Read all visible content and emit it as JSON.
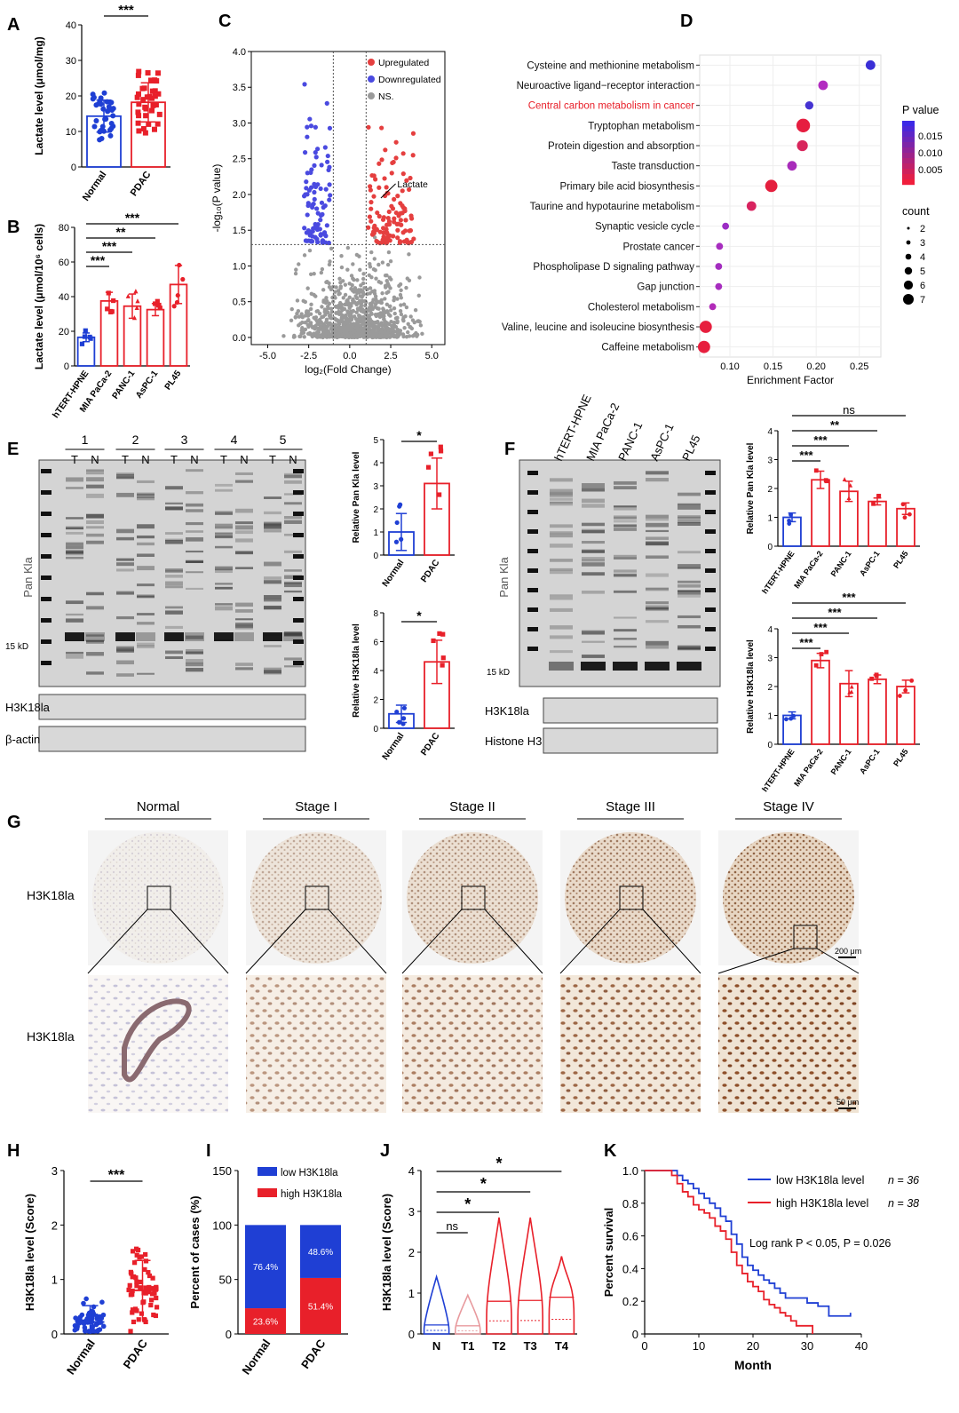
{
  "panel_letters": {
    "A": "A",
    "B": "B",
    "C": "C",
    "D": "D",
    "E": "E",
    "F": "F",
    "G": "G",
    "H": "H",
    "I": "I",
    "J": "J",
    "K": "K"
  },
  "colors": {
    "blue": "#1f3fd4",
    "red": "#e8202a",
    "grey": "#9a9a9a",
    "black": "#000000"
  },
  "chart_data": [
    {
      "panel": "A",
      "type": "bar",
      "ylabel": "Lactate level (μmol/mg)",
      "categories": [
        "Normal",
        "PDAC"
      ],
      "values": [
        14.3,
        18.2
      ],
      "errors": [
        4.5,
        5.5
      ],
      "ylim": [
        0,
        40
      ],
      "yticks": [
        "0",
        "10",
        "20",
        "30",
        "40"
      ],
      "significance": [
        {
          "from": "Normal",
          "to": "PDAC",
          "label": "***"
        }
      ]
    },
    {
      "panel": "B",
      "type": "bar",
      "ylabel": "Lactate level (μmol/10⁶ cells)",
      "categories": [
        "hTERT-HPNE",
        "MIA PaCa-2",
        "PANC-1",
        "AsPC-1",
        "PL45"
      ],
      "values": [
        16.5,
        37.5,
        34.5,
        32.5,
        47
      ],
      "errors": [
        2.5,
        5,
        7,
        3.5,
        11
      ],
      "ylim": [
        0,
        80
      ],
      "yticks": [
        "0",
        "20",
        "40",
        "60",
        "80"
      ],
      "significance": [
        {
          "from": "hTERT-HPNE",
          "to": "MIA PaCa-2",
          "label": "***"
        },
        {
          "from": "hTERT-HPNE",
          "to": "PANC-1",
          "label": "***"
        },
        {
          "from": "hTERT-HPNE",
          "to": "AsPC-1",
          "label": "**"
        },
        {
          "from": "hTERT-HPNE",
          "to": "PL45",
          "label": "***"
        }
      ]
    },
    {
      "panel": "C",
      "type": "scatter",
      "xlabel": "log₂(Fold Change)",
      "ylabel": "-log₁₀(P value)",
      "xlim": [
        -6,
        5.8
      ],
      "ylim": [
        -0.1,
        4.0
      ],
      "xticks": [
        "-5.0",
        "-2.5",
        "0.0",
        "2.5",
        "5.0"
      ],
      "yticks": [
        "0.0",
        "0.5",
        "1.0",
        "1.5",
        "2.0",
        "2.5",
        "3.0",
        "3.5",
        "4.0"
      ],
      "legend": [
        "Upregulated",
        "Downregulated",
        "NS."
      ],
      "annotation": "Lactate",
      "thresholds": {
        "fold": [
          -1,
          1
        ],
        "p": 1.3
      }
    },
    {
      "panel": "D",
      "type": "scatter",
      "xlabel": "Enrichment Factor",
      "xticks": [
        "0.10",
        "0.15",
        "0.20",
        "0.25"
      ],
      "legend_pvalue_title": "P value",
      "legend_pvalue_ticks": [
        "0.015",
        "0.010",
        "0.005"
      ],
      "legend_count_title": "count",
      "legend_count_values": [
        "2",
        "3",
        "4",
        "5",
        "6",
        "7"
      ],
      "pathways": [
        {
          "name": "Cysteine and methionine metabolism",
          "x": 0.263,
          "count": 4,
          "color": "#3a2fd6"
        },
        {
          "name": "Neuroactive ligand−receptor interaction",
          "x": 0.208,
          "count": 4,
          "color": "#b22cc0"
        },
        {
          "name": "Central carbon metabolism in cancer",
          "x": 0.192,
          "count": 3,
          "color": "#4533d2",
          "highlight": true
        },
        {
          "name": "Tryptophan metabolism",
          "x": 0.185,
          "count": 7,
          "color": "#e61e40"
        },
        {
          "name": "Protein digestion and absorption",
          "x": 0.184,
          "count": 5,
          "color": "#d8265c"
        },
        {
          "name": "Taste transduction",
          "x": 0.172,
          "count": 4,
          "color": "#a82cba"
        },
        {
          "name": "Primary bile acid biosynthesis",
          "x": 0.148,
          "count": 6,
          "color": "#e41f3e"
        },
        {
          "name": "Taurine and hypotaurine metabolism",
          "x": 0.125,
          "count": 4,
          "color": "#d8235f"
        },
        {
          "name": "Synaptic vesicle cycle",
          "x": 0.095,
          "count": 2,
          "color": "#9b2cc4"
        },
        {
          "name": "Prostate cancer",
          "x": 0.088,
          "count": 2,
          "color": "#a72dbf"
        },
        {
          "name": "Phospholipase D signaling pathway",
          "x": 0.087,
          "count": 2,
          "color": "#a32dbf"
        },
        {
          "name": "Gap junction",
          "x": 0.087,
          "count": 2,
          "color": "#a72dbf"
        },
        {
          "name": "Cholesterol metabolism",
          "x": 0.08,
          "count": 2,
          "color": "#b12bb8"
        },
        {
          "name": "Valine, leucine and isoleucine biosynthesis",
          "x": 0.072,
          "count": 6,
          "color": "#e71f3e"
        },
        {
          "name": "Caffeine metabolism",
          "x": 0.07,
          "count": 6,
          "color": "#e71f3e"
        }
      ]
    },
    {
      "panel": "E-upper",
      "type": "bar",
      "ylabel": "Relative Pan Kla level",
      "categories": [
        "Normal",
        "PDAC"
      ],
      "values": [
        1.0,
        3.1
      ],
      "errors": [
        0.8,
        1.1
      ],
      "ylim": [
        0,
        5
      ],
      "yticks": [
        "0",
        "1",
        "2",
        "3",
        "4",
        "5"
      ],
      "significance": [
        {
          "from": "Normal",
          "to": "PDAC",
          "label": "*"
        }
      ]
    },
    {
      "panel": "E-lower",
      "type": "bar",
      "ylabel": "Relative H3K18la level",
      "categories": [
        "Normal",
        "PDAC"
      ],
      "values": [
        1.0,
        4.6
      ],
      "errors": [
        0.6,
        1.5
      ],
      "ylim": [
        0,
        8
      ],
      "yticks": [
        "0",
        "2",
        "4",
        "6",
        "8"
      ],
      "significance": [
        {
          "from": "Normal",
          "to": "PDAC",
          "label": "*"
        }
      ]
    },
    {
      "panel": "F-upper",
      "type": "bar",
      "ylabel": "Relative Pan Kla level",
      "categories": [
        "hTERT-HPNE",
        "MIA PaCa-2",
        "PANC-1",
        "AsPC-1",
        "PL45"
      ],
      "values": [
        1.0,
        2.3,
        1.9,
        1.55,
        1.3
      ],
      "errors": [
        0.15,
        0.3,
        0.35,
        0.12,
        0.2
      ],
      "ylim": [
        0,
        4
      ],
      "yticks": [
        "0",
        "1",
        "2",
        "3",
        "4"
      ],
      "significance": [
        {
          "from": "hTERT-HPNE",
          "to": "MIA PaCa-2",
          "label": "***"
        },
        {
          "from": "hTERT-HPNE",
          "to": "PANC-1",
          "label": "***"
        },
        {
          "from": "hTERT-HPNE",
          "to": "AsPC-1",
          "label": "**"
        },
        {
          "from": "hTERT-HPNE",
          "to": "PL45",
          "label": "ns"
        }
      ]
    },
    {
      "panel": "F-lower",
      "type": "bar",
      "ylabel": "Relative H3K18la level",
      "categories": [
        "hTERT-HPNE",
        "MIA PaCa-2",
        "PANC-1",
        "AsPC-1",
        "PL45"
      ],
      "values": [
        1.0,
        2.9,
        2.1,
        2.25,
        2.0
      ],
      "errors": [
        0.12,
        0.25,
        0.45,
        0.15,
        0.22
      ],
      "ylim": [
        0,
        4
      ],
      "yticks": [
        "0",
        "1",
        "2",
        "3",
        "4"
      ],
      "significance": [
        {
          "from": "hTERT-HPNE",
          "to": "MIA PaCa-2",
          "label": "***"
        },
        {
          "from": "hTERT-HPNE",
          "to": "PANC-1",
          "label": "***"
        },
        {
          "from": "hTERT-HPNE",
          "to": "AsPC-1",
          "label": "***"
        },
        {
          "from": "hTERT-HPNE",
          "to": "PL45",
          "label": "***"
        }
      ]
    },
    {
      "panel": "H",
      "type": "scatter",
      "ylabel": "H3K18la level (Score)",
      "categories": [
        "Normal",
        "PDAC"
      ],
      "means": [
        0.22,
        0.8
      ],
      "errors": [
        0.3,
        0.55
      ],
      "ylim": [
        0,
        3
      ],
      "yticks": [
        "0",
        "1",
        "2",
        "3"
      ],
      "significance": [
        {
          "from": "Normal",
          "to": "PDAC",
          "label": "***"
        }
      ]
    },
    {
      "panel": "I",
      "type": "bar",
      "ylabel": "Percent of cases (%)",
      "categories": [
        "Normal",
        "PDAC"
      ],
      "series": [
        {
          "name": "low H3K18la",
          "values": [
            76.4,
            48.6
          ],
          "labels": [
            "76.4%",
            "48.6%"
          ]
        },
        {
          "name": "high H3K18la",
          "values": [
            23.6,
            51.4
          ],
          "labels": [
            "23.6%",
            "51.4%"
          ]
        }
      ],
      "ylim": [
        0,
        150
      ],
      "yticks": [
        "0",
        "50",
        "100",
        "150"
      ]
    },
    {
      "panel": "J",
      "type": "violin",
      "ylabel": "H3K18la level (Score)",
      "categories": [
        "N",
        "T1",
        "T2",
        "T3",
        "T4"
      ],
      "medians": [
        0.22,
        0.2,
        0.8,
        0.82,
        0.9
      ],
      "maxima": [
        1.4,
        0.95,
        2.85,
        2.85,
        1.9
      ],
      "ylim": [
        0,
        4
      ],
      "yticks": [
        "0",
        "1",
        "2",
        "3",
        "4"
      ],
      "significance": [
        {
          "from": "N",
          "to": "T1",
          "label": "ns"
        },
        {
          "from": "N",
          "to": "T2",
          "label": "*"
        },
        {
          "from": "N",
          "to": "T3",
          "label": "*"
        },
        {
          "from": "N",
          "to": "T4",
          "label": "*"
        }
      ]
    },
    {
      "panel": "K",
      "type": "line",
      "xlabel": "Month",
      "ylabel": "Percent survival",
      "xlim": [
        0,
        40
      ],
      "ylim": [
        0,
        1.0
      ],
      "xticks": [
        "0",
        "10",
        "20",
        "30",
        "40"
      ],
      "yticks": [
        "0",
        "0.2",
        "0.4",
        "0.6",
        "0.8",
        "1.0"
      ],
      "series": [
        {
          "name": "low H3K18la level",
          "n_label": "n = 36",
          "x": [
            0,
            5,
            6,
            7,
            8,
            9,
            10,
            11,
            12,
            13,
            14,
            15,
            16,
            17,
            18,
            19,
            20,
            21,
            22,
            23,
            24,
            25,
            26,
            28,
            30,
            32,
            34,
            36,
            38
          ],
          "y": [
            1.0,
            1.0,
            0.97,
            0.94,
            0.92,
            0.89,
            0.86,
            0.83,
            0.8,
            0.77,
            0.72,
            0.69,
            0.61,
            0.55,
            0.47,
            0.42,
            0.39,
            0.36,
            0.33,
            0.31,
            0.28,
            0.25,
            0.22,
            0.22,
            0.19,
            0.17,
            0.11,
            0.11,
            0.13
          ]
        },
        {
          "name": "high H3K18la level",
          "n_label": "n = 38",
          "x": [
            0,
            4,
            5,
            6,
            7,
            8,
            9,
            10,
            11,
            12,
            13,
            14,
            15,
            16,
            17,
            18,
            19,
            20,
            21,
            22,
            23,
            24,
            25,
            26,
            27,
            28,
            30,
            31
          ],
          "y": [
            1.0,
            1.0,
            0.97,
            0.92,
            0.87,
            0.84,
            0.79,
            0.76,
            0.74,
            0.71,
            0.66,
            0.63,
            0.58,
            0.5,
            0.42,
            0.37,
            0.32,
            0.29,
            0.26,
            0.21,
            0.18,
            0.16,
            0.13,
            0.11,
            0.08,
            0.05,
            0.05,
            0.0
          ]
        }
      ],
      "annotation": "Log rank P < 0.05, P = 0.026"
    }
  ],
  "blots": {
    "E": {
      "sample_numbers": [
        "1",
        "2",
        "3",
        "4",
        "5"
      ],
      "tn_labels": [
        "T",
        "N",
        "T",
        "N",
        "T",
        "N",
        "T",
        "N",
        "T",
        "N"
      ],
      "pan_label": "Pan Kla",
      "marker_label": "15 kD",
      "h3_label": "H3K18la",
      "loading_label": "β-actin"
    },
    "F": {
      "lanes": [
        "hTERT-HPNE",
        "MIA PaCa-2",
        "PANC-1",
        "AsPC-1",
        "PL45"
      ],
      "pan_label": "Pan Kla",
      "marker_label": "15 kD",
      "h3_label": "H3K18la",
      "loading_label": "Histone H3"
    }
  },
  "ihc": {
    "stages": [
      "Normal",
      "Stage I",
      "Stage II",
      "Stage III",
      "Stage IV"
    ],
    "row_label_top": "H3K18la",
    "row_label_bottom": "H3K18la",
    "scale_top": "200 μm",
    "scale_bottom": "50 μm"
  }
}
